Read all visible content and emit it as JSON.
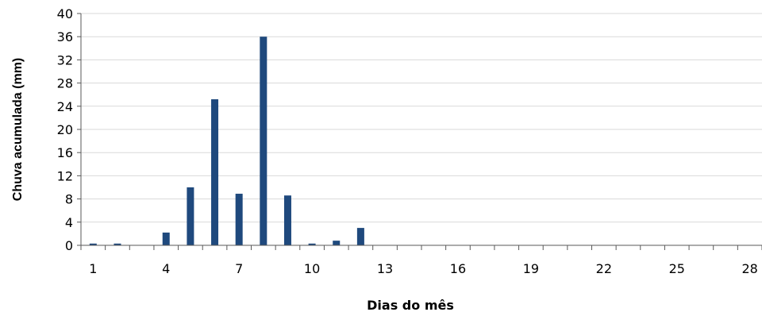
{
  "chart_data": {
    "type": "bar",
    "x": [
      1,
      2,
      3,
      4,
      5,
      6,
      7,
      8,
      9,
      10,
      11,
      12,
      13,
      14,
      15,
      16,
      17,
      18,
      19,
      20,
      21,
      22,
      23,
      24,
      25,
      26,
      27,
      28
    ],
    "values": [
      0.3,
      0.3,
      0,
      2.2,
      10,
      25.2,
      8.9,
      36,
      8.6,
      0.3,
      0.8,
      3,
      0,
      0,
      0,
      0,
      0,
      0,
      0,
      0,
      0,
      0,
      0,
      0,
      0,
      0,
      0,
      0
    ],
    "xlabel": "Dias do mês",
    "ylabel": "Chuva acumulada (mm)",
    "ylim": [
      0,
      40
    ],
    "y_ticks": [
      0,
      4,
      8,
      12,
      16,
      20,
      24,
      28,
      32,
      36,
      40
    ],
    "x_ticks": [
      1,
      4,
      7,
      10,
      13,
      16,
      19,
      22,
      25,
      28
    ],
    "grid": true,
    "bar_color": "#1F497D",
    "grid_color": "#D9D9D9"
  }
}
